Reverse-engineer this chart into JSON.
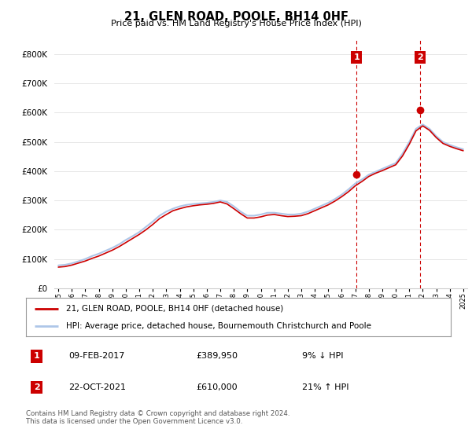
{
  "title": "21, GLEN ROAD, POOLE, BH14 0HF",
  "subtitle": "Price paid vs. HM Land Registry's House Price Index (HPI)",
  "legend_line1": "21, GLEN ROAD, POOLE, BH14 0HF (detached house)",
  "legend_line2": "HPI: Average price, detached house, Bournemouth Christchurch and Poole",
  "annotation1_date": "09-FEB-2017",
  "annotation1_price": "£389,950",
  "annotation1_hpi": "9% ↓ HPI",
  "annotation1_year": 2017.1,
  "annotation1_value": 389950,
  "annotation2_date": "22-OCT-2021",
  "annotation2_price": "£610,000",
  "annotation2_hpi": "21% ↑ HPI",
  "annotation2_year": 2021.83,
  "annotation2_value": 610000,
  "footer": "Contains HM Land Registry data © Crown copyright and database right 2024.\nThis data is licensed under the Open Government Licence v3.0.",
  "hpi_color": "#aec6e8",
  "price_color": "#cc0000",
  "background_color": "#ffffff",
  "ylim": [
    0,
    850000
  ],
  "yticks": [
    0,
    100000,
    200000,
    300000,
    400000,
    500000,
    600000,
    700000,
    800000
  ],
  "hpi_years": [
    1995,
    1995.5,
    1996,
    1996.5,
    1997,
    1997.5,
    1998,
    1998.5,
    1999,
    1999.5,
    2000,
    2000.5,
    2001,
    2001.5,
    2002,
    2002.5,
    2003,
    2003.5,
    2004,
    2004.5,
    2005,
    2005.5,
    2006,
    2006.5,
    2007,
    2007.5,
    2008,
    2008.5,
    2009,
    2009.5,
    2010,
    2010.5,
    2011,
    2011.5,
    2012,
    2012.5,
    2013,
    2013.5,
    2014,
    2014.5,
    2015,
    2015.5,
    2016,
    2016.5,
    2017,
    2017.5,
    2018,
    2018.5,
    2019,
    2019.5,
    2020,
    2020.5,
    2021,
    2021.5,
    2022,
    2022.5,
    2023,
    2023.5,
    2024,
    2024.5,
    2025
  ],
  "hpi_values": [
    78000,
    80000,
    85000,
    92000,
    100000,
    110000,
    118000,
    128000,
    138000,
    150000,
    165000,
    178000,
    192000,
    210000,
    228000,
    248000,
    262000,
    272000,
    280000,
    285000,
    288000,
    290000,
    292000,
    295000,
    300000,
    295000,
    280000,
    262000,
    248000,
    248000,
    252000,
    258000,
    258000,
    255000,
    252000,
    252000,
    255000,
    262000,
    272000,
    282000,
    292000,
    305000,
    320000,
    338000,
    358000,
    372000,
    388000,
    398000,
    408000,
    418000,
    428000,
    460000,
    500000,
    545000,
    560000,
    545000,
    520000,
    500000,
    490000,
    482000,
    475000
  ],
  "price_years": [
    1995,
    1995.5,
    1996,
    1996.5,
    1997,
    1997.5,
    1998,
    1998.5,
    1999,
    1999.5,
    2000,
    2000.5,
    2001,
    2001.5,
    2002,
    2002.5,
    2003,
    2003.5,
    2004,
    2004.5,
    2005,
    2005.5,
    2006,
    2006.5,
    2007,
    2007.5,
    2008,
    2008.5,
    2009,
    2009.5,
    2010,
    2010.5,
    2011,
    2011.5,
    2012,
    2012.5,
    2013,
    2013.5,
    2014,
    2014.5,
    2015,
    2015.5,
    2016,
    2016.5,
    2017,
    2017.5,
    2018,
    2018.5,
    2019,
    2019.5,
    2020,
    2020.5,
    2021,
    2021.5,
    2022,
    2022.5,
    2023,
    2023.5,
    2024,
    2024.5,
    2025
  ],
  "price_values": [
    72000,
    74000,
    79000,
    86000,
    93000,
    102000,
    110000,
    120000,
    130000,
    142000,
    156000,
    170000,
    184000,
    200000,
    218000,
    238000,
    252000,
    265000,
    272000,
    278000,
    282000,
    285000,
    287000,
    290000,
    295000,
    288000,
    272000,
    255000,
    240000,
    240000,
    244000,
    250000,
    252000,
    248000,
    245000,
    246000,
    248000,
    255000,
    265000,
    275000,
    285000,
    298000,
    313000,
    330000,
    350000,
    365000,
    382000,
    393000,
    402000,
    412000,
    422000,
    452000,
    492000,
    538000,
    555000,
    540000,
    515000,
    495000,
    485000,
    477000,
    470000
  ]
}
